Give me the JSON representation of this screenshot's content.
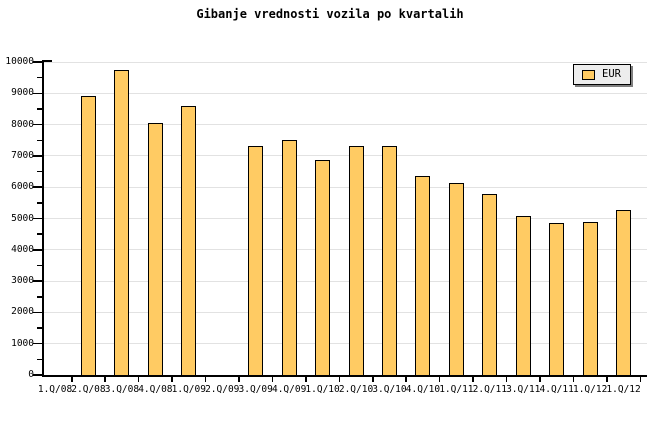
{
  "chart_data": {
    "type": "bar",
    "title": "Gibanje vrednosti vozila po kvartalih",
    "categories": [
      "1.Q/08",
      "2.Q/08",
      "3.Q/08",
      "4.Q/08",
      "1.Q/09",
      "2.Q/09",
      "3.Q/09",
      "4.Q/09",
      "1.Q/10",
      "2.Q/10",
      "3.Q/10",
      "4.Q/10",
      "1.Q/11",
      "2.Q/11",
      "3.Q/11",
      "4.Q/11",
      "1.Q/12",
      "1.Q/12"
    ],
    "series": [
      {
        "name": "EUR",
        "values": [
          null,
          8900,
          9750,
          8050,
          8600,
          null,
          7330,
          7520,
          6870,
          7330,
          7330,
          6350,
          6130,
          5780,
          5080,
          4850,
          4900,
          5270
        ]
      }
    ],
    "xlabel": "",
    "ylabel": "",
    "ylim": [
      0,
      10000
    ],
    "ytick_step": 1000,
    "ytick_minor_step": 500,
    "ytick_labels": [
      "0",
      "1000",
      "2000",
      "3000",
      "4000",
      "5000",
      "6000",
      "7000",
      "8000",
      "9000",
      "10000"
    ],
    "grid": true,
    "legend_position": "top-right",
    "colors": {
      "bar_fill": "#ffcb63",
      "bar_border": "#000000",
      "grid": "#e2e2e2",
      "axis": "#000000",
      "text": "#000000",
      "legend_bg": "#ededed",
      "legend_shadow": "#7f7f7f",
      "background": "#ffffff"
    }
  },
  "legend": {
    "label": "EUR"
  }
}
